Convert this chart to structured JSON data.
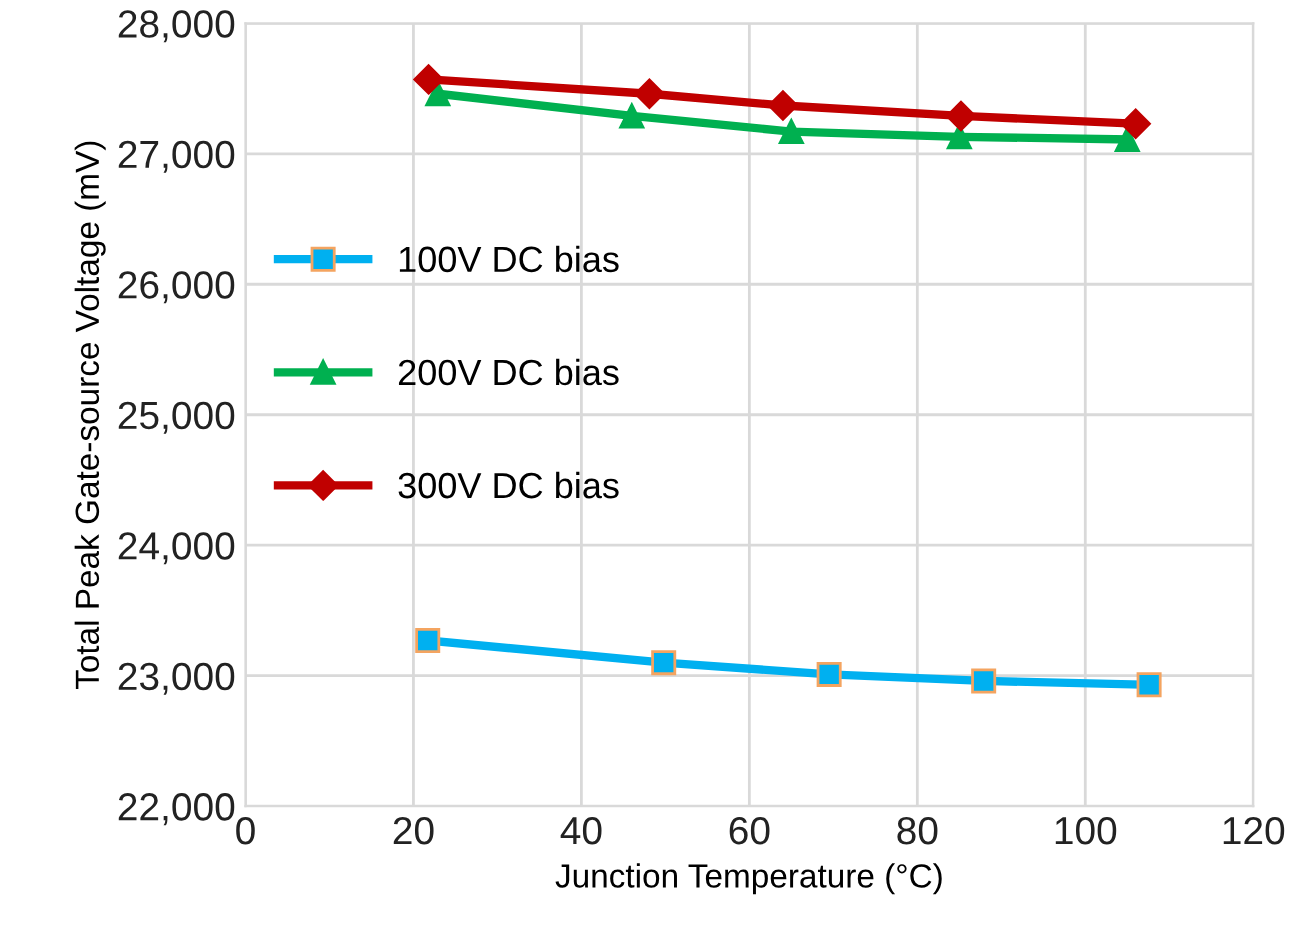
{
  "chart_data": {
    "type": "line",
    "xlabel": "Junction Temperature (°C)",
    "ylabel": "Total Peak Gate-source Voltage (mV)",
    "xlim": [
      0,
      120
    ],
    "xticks": [
      0,
      20,
      40,
      60,
      80,
      100,
      120
    ],
    "ylim": [
      22000,
      28000
    ],
    "yticks": [
      {
        "value": 22000,
        "label": "22,000"
      },
      {
        "value": 23000,
        "label": "23,000"
      },
      {
        "value": 24000,
        "label": "24,000"
      },
      {
        "value": 25000,
        "label": "25,000"
      },
      {
        "value": 26000,
        "label": "26,000"
      },
      {
        "value": 27000,
        "label": "27,000"
      },
      {
        "value": 28000,
        "label": "28,000"
      }
    ],
    "grid": true,
    "legend": "left",
    "series": [
      {
        "name": "100V DC bias",
        "color": "#00b0f0",
        "marker": "square",
        "x": [
          21.7,
          49.8,
          69.5,
          87.9,
          107.6
        ],
        "values": [
          23270,
          23100,
          23010,
          22960,
          22930
        ]
      },
      {
        "name": "200V DC bias",
        "color": "#00b050",
        "marker": "triangle",
        "x": [
          22.9,
          46.0,
          65.0,
          85.0,
          105.0
        ],
        "values": [
          27460,
          27290,
          27170,
          27130,
          27110
        ]
      },
      {
        "name": "300V DC bias",
        "color": "#c00000",
        "marker": "diamond",
        "x": [
          21.8,
          48.1,
          64.0,
          85.2,
          106.0
        ],
        "values": [
          27570,
          27460,
          27370,
          27290,
          27230
        ]
      }
    ]
  }
}
